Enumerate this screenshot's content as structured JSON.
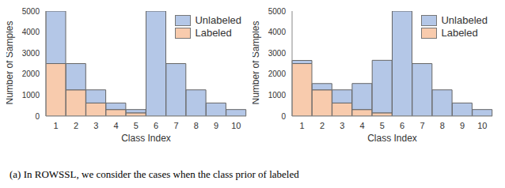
{
  "chart_data": [
    {
      "type": "bar",
      "stacked": true,
      "x_label": "Class Index",
      "y_label": "Number of Samples",
      "categories": [
        "1",
        "2",
        "3",
        "4",
        "5",
        "6",
        "7",
        "8",
        "9",
        "10"
      ],
      "series": [
        {
          "name": "Unlabeled",
          "color": "#b4c7e7",
          "values": [
            2500,
            1250,
            625,
            313,
            157,
            5000,
            2500,
            1250,
            625,
            313
          ]
        },
        {
          "name": "Labeled",
          "color": "#f8cbad",
          "values": [
            2500,
            1250,
            625,
            312,
            156,
            0,
            0,
            0,
            0,
            0
          ]
        }
      ],
      "ylim": [
        0,
        5000
      ],
      "yticks": [
        0,
        1000,
        2000,
        3000,
        4000,
        5000
      ],
      "legend": "top-right"
    },
    {
      "type": "bar",
      "stacked": true,
      "x_label": "Class Index",
      "y_label": "Number of Samples",
      "categories": [
        "1",
        "2",
        "3",
        "4",
        "5",
        "6",
        "7",
        "8",
        "9",
        "10"
      ],
      "series": [
        {
          "name": "Unlabeled",
          "color": "#b4c7e7",
          "values": [
            150,
            300,
            625,
            1240,
            2500,
            5000,
            2500,
            1250,
            625,
            313
          ]
        },
        {
          "name": "Labeled",
          "color": "#f8cbad",
          "values": [
            2500,
            1250,
            625,
            312,
            156,
            0,
            0,
            0,
            0,
            0
          ]
        }
      ],
      "ylim": [
        0,
        5000
      ],
      "yticks": [
        0,
        1000,
        2000,
        3000,
        4000,
        5000
      ],
      "legend": "top-right"
    }
  ],
  "caption": "(a) In ROWSSL, we consider the cases when the class prior of labeled"
}
